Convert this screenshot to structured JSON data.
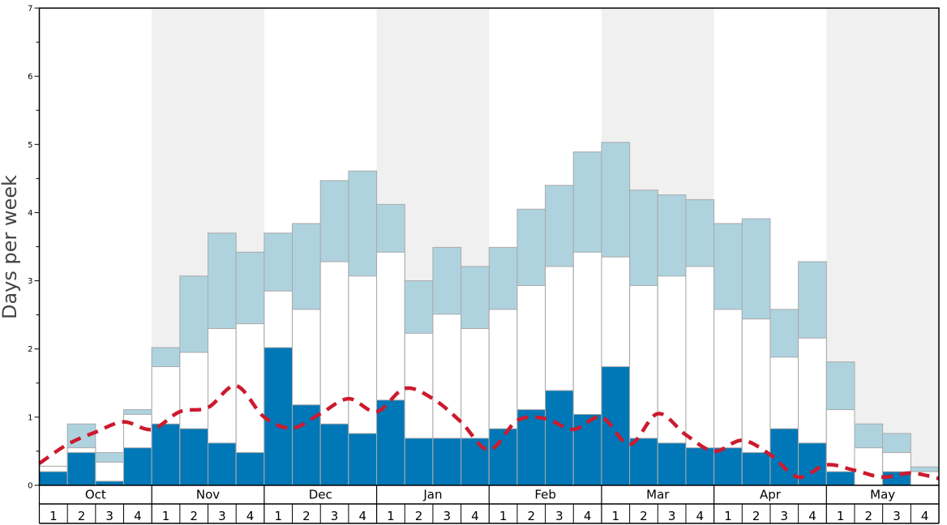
{
  "chart_data": {
    "type": "bar",
    "ylabel": "Days per week",
    "ylim": [
      0,
      7
    ],
    "yticks": [
      0,
      1,
      2,
      3,
      4,
      5,
      6,
      7
    ],
    "months": [
      "Oct",
      "Nov",
      "Dec",
      "Jan",
      "Feb",
      "Mar",
      "Apr",
      "May"
    ],
    "weeks": [
      "1",
      "2",
      "3",
      "4"
    ],
    "colors": {
      "dark": "#0077b6",
      "light": "#aed3df",
      "mid": "#ffffff",
      "line": "#cc1a2e",
      "shade": "#f0f0f1",
      "bar_edge": "#a9a9a9"
    },
    "series": [
      {
        "values": [
          0.2,
          0.48,
          0.06,
          0.55,
          0.9,
          0.83,
          0.62,
          0.48,
          2.02,
          1.18,
          0.9,
          0.76,
          1.25,
          0.69,
          0.69,
          0.69,
          0.83,
          1.11,
          1.39,
          1.04,
          1.74,
          0.69,
          0.62,
          0.55,
          0.55,
          0.48,
          0.83,
          0.62,
          0.2,
          0.0,
          0.2,
          0.0
        ]
      },
      {
        "values": [
          0.28,
          0.55,
          0.34,
          1.04,
          1.74,
          1.95,
          2.3,
          2.37,
          2.85,
          2.58,
          3.28,
          3.07,
          3.42,
          2.23,
          2.51,
          2.3,
          2.58,
          2.93,
          3.21,
          3.42,
          3.35,
          2.93,
          3.07,
          3.21,
          2.58,
          2.44,
          1.88,
          2.16,
          1.11,
          0.55,
          0.48,
          0.2
        ]
      },
      {
        "values": [
          0.28,
          0.9,
          0.48,
          1.11,
          2.02,
          3.07,
          3.7,
          3.42,
          3.7,
          3.84,
          4.47,
          4.61,
          4.12,
          3.0,
          3.49,
          3.21,
          3.49,
          4.05,
          4.4,
          4.89,
          5.03,
          4.33,
          4.26,
          4.19,
          3.84,
          3.91,
          2.58,
          3.28,
          1.81,
          0.9,
          0.76,
          0.27
        ]
      },
      {
        "values": [
          0.32,
          0.6,
          0.78,
          0.93,
          0.82,
          1.08,
          1.14,
          1.46,
          1.0,
          0.84,
          1.05,
          1.27,
          1.08,
          1.42,
          1.27,
          0.93,
          0.52,
          0.95,
          0.98,
          0.82,
          1.0,
          0.6,
          1.05,
          0.74,
          0.5,
          0.66,
          0.45,
          0.12,
          0.3,
          0.22,
          0.12,
          0.18,
          0.1
        ]
      }
    ]
  }
}
